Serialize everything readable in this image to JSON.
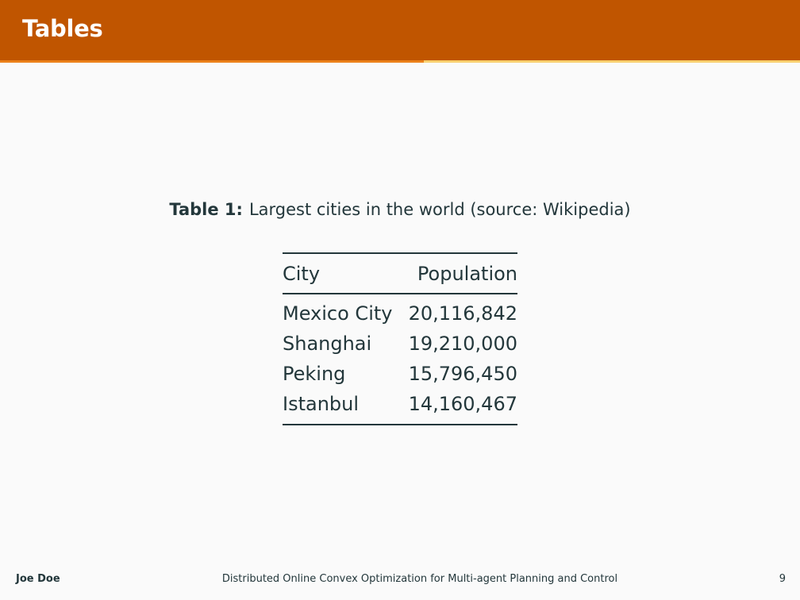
{
  "header": {
    "title": "Tables"
  },
  "progress": {
    "fraction": 0.53
  },
  "table": {
    "caption_label": "Table 1:",
    "caption_text": "Largest cities in the world (source: Wikipedia)",
    "columns": [
      "City",
      "Population"
    ],
    "rows": [
      [
        "Mexico City",
        "20,116,842"
      ],
      [
        "Shanghai",
        "19,210,000"
      ],
      [
        "Peking",
        "15,796,450"
      ],
      [
        "Istanbul",
        "14,160,467"
      ]
    ]
  },
  "footer": {
    "author": "Joe Doe",
    "title": "Distributed Online Convex Optimization for Multi-agent Planning and Control",
    "page": "9"
  },
  "colors": {
    "header_bg": "#c05500",
    "progress_fill": "#eb811b",
    "progress_track": "#f8d070",
    "text": "#23373b",
    "background": "#fafafa"
  }
}
